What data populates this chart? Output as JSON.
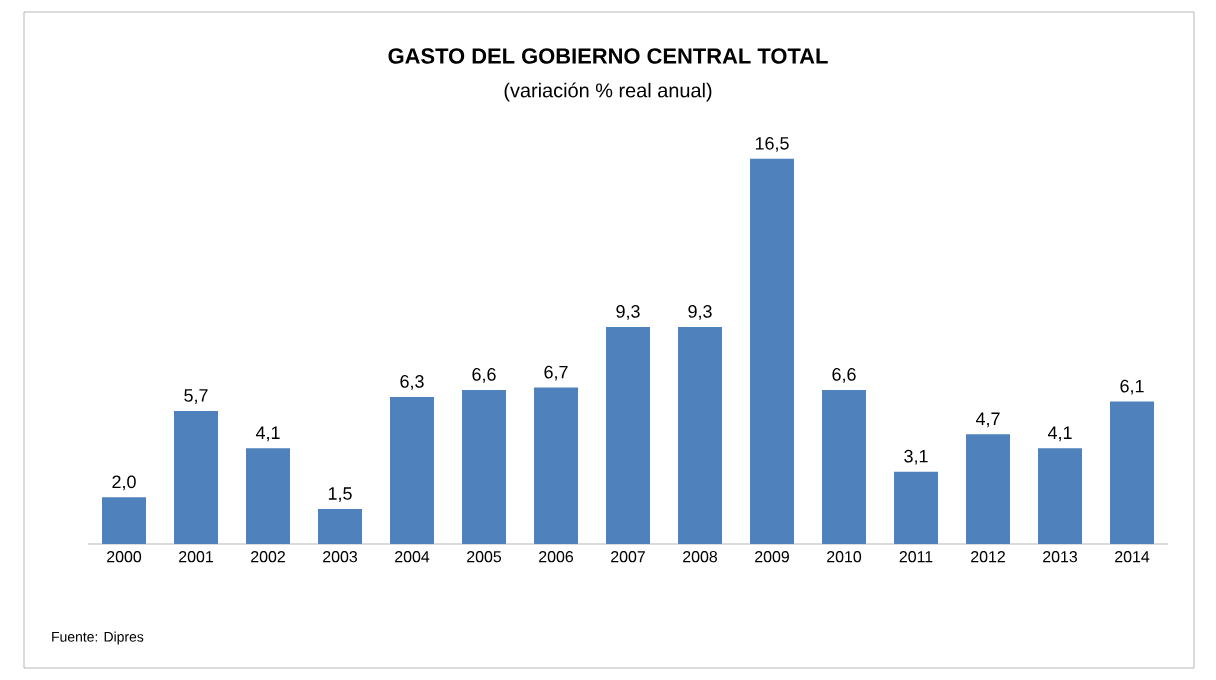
{
  "chart_data": {
    "type": "bar",
    "title": "GASTO DEL GOBIERNO CENTRAL TOTAL",
    "subtitle": "(variación % real anual)",
    "categories": [
      "2000",
      "2001",
      "2002",
      "2003",
      "2004",
      "2005",
      "2006",
      "2007",
      "2008",
      "2009",
      "2010",
      "2011",
      "2012",
      "2013",
      "2014"
    ],
    "values": [
      2.0,
      5.7,
      4.1,
      1.5,
      6.3,
      6.6,
      6.7,
      9.3,
      9.3,
      16.5,
      6.6,
      3.1,
      4.7,
      4.1,
      6.1
    ],
    "value_labels": [
      "2,0",
      "5,7",
      "4,1",
      "1,5",
      "6,3",
      "6,6",
      "6,7",
      "9,3",
      "9,3",
      "16,5",
      "6,6",
      "3,1",
      "4,7",
      "4,1",
      "6,1"
    ],
    "color": "#4f81bd",
    "annotations": [
      "Fuente: Dipres"
    ]
  }
}
